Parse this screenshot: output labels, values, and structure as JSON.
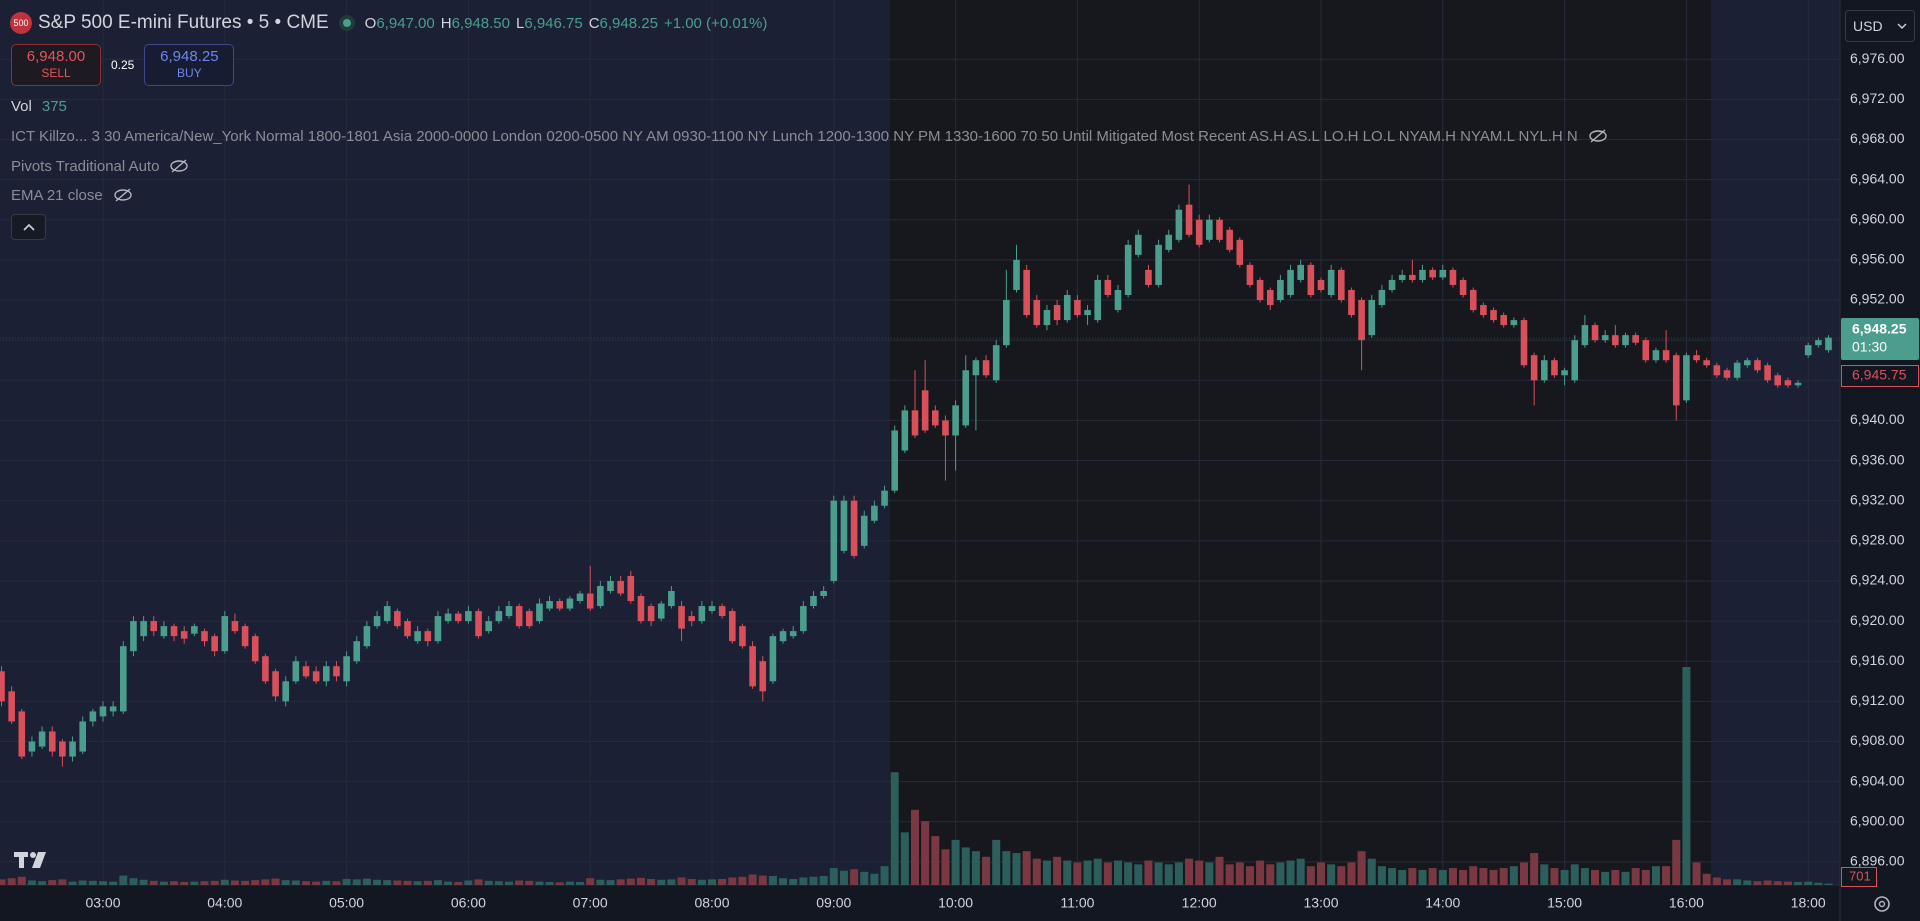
{
  "header": {
    "badge": "500",
    "ohlc": [
      {
        "key": "O",
        "value": "6,947.00"
      },
      {
        "key": "H",
        "value": "6,948.50"
      },
      {
        "key": "L",
        "value": "6,946.75"
      },
      {
        "key": "C",
        "value": "6,948.25"
      }
    ],
    "change": "+1.00 (+0.01%)"
  },
  "trade": {
    "sell_price": "6,948.00",
    "sell": "SELL",
    "spread": "0.25",
    "buy_price": "6,948.25",
    "buy": "BUY"
  },
  "volume_legend": {
    "label": "Vol",
    "value": "375"
  },
  "indicators": [
    "ICT Killzo... 3 30 America/New_York Normal 1800-1801 Asia 2000-0000 London 0200-0500 NY AM 0930-1100 NY Lunch 1200-1300 NY PM 1330-1600 70 50 Until Mitigated Most Recent AS.H AS.L LO.H LO.L NYAM.H NYAM.L NYL.H N",
    "Pivots Traditional Auto",
    "EMA 21 close"
  ],
  "currency": "USD",
  "price_tags": {
    "last": "6,948.25",
    "countdown": "01:30",
    "marker": "6,945.75",
    "volume": "701"
  },
  "chart_data": {
    "type": "candlestick",
    "title": "S&P 500 E-mini Futures • 5 • CME",
    "categories": [
      null,
      null,
      null,
      null,
      null,
      null,
      null,
      null,
      null,
      null,
      "03:00",
      null,
      null,
      null,
      null,
      null,
      null,
      null,
      null,
      null,
      null,
      null,
      "04:00",
      null,
      null,
      null,
      null,
      null,
      null,
      null,
      null,
      null,
      null,
      null,
      "05:00",
      null,
      null,
      null,
      null,
      null,
      null,
      null,
      null,
      null,
      null,
      null,
      "06:00",
      null,
      null,
      null,
      null,
      null,
      null,
      null,
      null,
      null,
      null,
      null,
      "07:00",
      null,
      null,
      null,
      null,
      null,
      null,
      null,
      null,
      null,
      null,
      null,
      "08:00",
      null,
      null,
      null,
      null,
      null,
      null,
      null,
      null,
      null,
      null,
      null,
      "09:00",
      null,
      null,
      null,
      null,
      null,
      null,
      null,
      null,
      null,
      null,
      null,
      "10:00",
      null,
      null,
      null,
      null,
      null,
      null,
      null,
      null,
      null,
      null,
      null,
      "11:00",
      null,
      null,
      null,
      null,
      null,
      null,
      null,
      null,
      null,
      null,
      null,
      "12:00",
      null,
      null,
      null,
      null,
      null,
      null,
      null,
      null,
      null,
      null,
      null,
      "13:00",
      null,
      null,
      null,
      null,
      null,
      null,
      null,
      null,
      null,
      null,
      null,
      "14:00",
      null,
      null,
      null,
      null,
      null,
      null,
      null,
      null,
      null,
      null,
      null,
      "15:00",
      null,
      null,
      null,
      null,
      null,
      null,
      null,
      null,
      null,
      null,
      null,
      "16:00",
      null,
      null,
      null,
      null,
      null,
      null,
      null,
      null,
      null,
      null,
      null,
      "18:00",
      null,
      null
    ],
    "open": [
      6915,
      6913,
      6911,
      6907,
      6907.5,
      6909,
      6908,
      6906.5,
      6907,
      6910,
      6910.5,
      6911,
      6911,
      6917,
      6918.5,
      6920,
      6918.5,
      6919.5,
      6919,
      6918.75,
      6919,
      6918.5,
      6917,
      6920,
      6919.5,
      6918.5,
      6916.5,
      6915,
      6912,
      6914,
      6915.5,
      6915,
      6914,
      6915.5,
      6914,
      6916,
      6917.5,
      6919.5,
      6920,
      6921,
      6920,
      6918,
      6919,
      6918,
      6920,
      6920.75,
      6920,
      6921,
      6919,
      6920,
      6920.5,
      6921.5,
      6921,
      6920,
      6921.25,
      6922,
      6921.25,
      6922,
      6922.75,
      6921.5,
      6923,
      6924,
      6924.5,
      6922.5,
      6921.5,
      6920.25,
      6921.5,
      6921.5,
      6920.5,
      6920,
      6921,
      6921.5,
      6921,
      6919.5,
      6917.5,
      6916,
      6914,
      6918,
      6918.5,
      6919,
      6921.5,
      6922.5,
      6924,
      6927,
      6932,
      6927.5,
      6930,
      6931.5,
      6933,
      6937,
      6941,
      6943,
      6941,
      6940,
      6938.5,
      6939.5,
      6944.5,
      6946,
      6944,
      6947.5,
      6953,
      6955,
      6952,
      6949.5,
      6951.5,
      6950,
      6952,
      6950.5,
      6950,
      6954,
      6951,
      6952.5,
      6956.5,
      6955,
      6953.5,
      6957,
      6958,
      6961.5,
      6960,
      6958,
      6960,
      6959,
      6958,
      6955.5,
      6954,
      6953,
      6952,
      6952.5,
      6954,
      6955.5,
      6954,
      6952.5,
      6955,
      6953,
      6952,
      6948.5,
      6951.5,
      6953,
      6954,
      6954.5,
      6954,
      6955,
      6954.25,
      6955,
      6954,
      6953,
      6951.5,
      6951,
      6950.5,
      6949.5,
      6950,
      6946.5,
      6944,
      6946,
      6944.5,
      6944,
      6947.5,
      6949.5,
      6948,
      6948.5,
      6947.5,
      6948.5,
      6948,
      6946,
      6947,
      6946.5,
      6942,
      6946.5,
      6946,
      6945.5,
      6945,
      6944.25,
      6945.5,
      6946,
      6945.5,
      6944.5,
      6944,
      6943.5,
      6946.5,
      6947.5,
      6947
    ],
    "high": [
      6915.5,
      6913.5,
      6911.25,
      6908.5,
      6909.5,
      6909.5,
      6908.25,
      6908.5,
      6910.5,
      6911.25,
      6912,
      6912,
      6918,
      6920.5,
      6920.5,
      6920.5,
      6920,
      6919.75,
      6919.5,
      6919.75,
      6919.25,
      6918.75,
      6921,
      6920.75,
      6919.75,
      6918.75,
      6916.75,
      6915.25,
      6914.5,
      6916.5,
      6916,
      6915.5,
      6916,
      6916,
      6917,
      6918.5,
      6920,
      6921,
      6922,
      6921.25,
      6920.25,
      6919.5,
      6919.25,
      6921,
      6921.25,
      6921,
      6921.5,
      6921.25,
      6920.5,
      6921.5,
      6922,
      6921.75,
      6921.25,
      6922.25,
      6922.5,
      6922.25,
      6922.5,
      6923,
      6925.5,
      6924,
      6924.5,
      6924.5,
      6925,
      6922.75,
      6921.75,
      6922,
      6923.5,
      6922,
      6921,
      6922,
      6922,
      6921.75,
      6921.25,
      6919.75,
      6918,
      6916.5,
      6918.75,
      6919.25,
      6919.5,
      6922,
      6923,
      6923.5,
      6932.5,
      6932.5,
      6932.5,
      6931,
      6932,
      6933.5,
      6939.5,
      6941.5,
      6945,
      6946,
      6941.5,
      6940.5,
      6942,
      6946.5,
      6946.25,
      6946.5,
      6948,
      6955,
      6957.5,
      6955.5,
      6952.5,
      6951.5,
      6952,
      6953,
      6952.5,
      6951.5,
      6954.5,
      6954.5,
      6953.5,
      6958,
      6959,
      6955.5,
      6958,
      6959,
      6961.5,
      6963.5,
      6960.5,
      6960.5,
      6960.25,
      6959.25,
      6958.25,
      6955.75,
      6954.25,
      6953.25,
      6954.5,
      6955.5,
      6956,
      6955.75,
      6954.25,
      6955.5,
      6955.25,
      6953.25,
      6952.25,
      6952.5,
      6953.5,
      6954.5,
      6955,
      6956,
      6955.5,
      6955.25,
      6955.5,
      6955.25,
      6954.25,
      6953.25,
      6951.75,
      6951.25,
      6950.75,
      6950.25,
      6950.25,
      6946.75,
      6946.5,
      6946.25,
      6945.25,
      6948.5,
      6950.5,
      6949.75,
      6949,
      6949.5,
      6948.75,
      6948.75,
      6948.25,
      6947.25,
      6949,
      6946.75,
      6946.75,
      6947,
      6946.25,
      6945.75,
      6945.25,
      6946,
      6946.25,
      6946.25,
      6945.75,
      6944.75,
      6944.25,
      6944,
      6947.75,
      6948.25,
      6948.5
    ],
    "low": [
      6911.5,
      6909.75,
      6906.25,
      6906.5,
      6907.25,
      6906.5,
      6905.5,
      6906,
      6906.75,
      6909.5,
      6910,
      6910.5,
      6910.75,
      6916.5,
      6918,
      6918.5,
      6918.25,
      6918,
      6917.75,
      6918.5,
      6917.5,
      6916.5,
      6916.75,
      6918.75,
      6917.25,
      6915.75,
      6913.75,
      6912,
      6911.5,
      6913.75,
      6914.25,
      6913.75,
      6913.5,
      6914,
      6913.5,
      6915.75,
      6917.25,
      6919.25,
      6919.75,
      6919.25,
      6918.25,
      6917.75,
      6917.5,
      6917.75,
      6919.75,
      6919.75,
      6919.75,
      6918.25,
      6918.75,
      6919.75,
      6920.25,
      6919.25,
      6919.25,
      6919.75,
      6921,
      6921,
      6921,
      6921.75,
      6921,
      6921.25,
      6922.75,
      6922.5,
      6921.75,
      6919.75,
      6919.5,
      6920,
      6921.25,
      6918,
      6919.5,
      6919.75,
      6920.75,
      6920.25,
      6917.75,
      6917.25,
      6913.25,
      6912,
      6913.75,
      6917.75,
      6918.25,
      6918.75,
      6921.25,
      6922.25,
      6923.75,
      6926.75,
      6926.25,
      6927.25,
      6929.75,
      6931.25,
      6932.75,
      6936.75,
      6938.25,
      6938.75,
      6939.25,
      6934,
      6935,
      6939.25,
      6939,
      6944.25,
      6943.75,
      6947.25,
      6952.75,
      6950.25,
      6949.25,
      6949,
      6949.5,
      6949.75,
      6950.25,
      6949.5,
      6949.75,
      6952.25,
      6950.75,
      6952.25,
      6956.25,
      6953.25,
      6953.25,
      6956.75,
      6957.75,
      6958.25,
      6957.25,
      6957.75,
      6957.75,
      6956.75,
      6955.25,
      6953.25,
      6951.75,
      6951,
      6951.75,
      6952.25,
      6953.75,
      6952.25,
      6952.75,
      6952.25,
      6951.75,
      6950.25,
      6945,
      6948.25,
      6951.25,
      6952.75,
      6953.75,
      6953.75,
      6953.75,
      6954,
      6954,
      6953.25,
      6952.25,
      6950.75,
      6950.25,
      6949.75,
      6949.25,
      6949.25,
      6945.25,
      6941.5,
      6943.75,
      6944.25,
      6943.5,
      6943.75,
      6947.25,
      6947.75,
      6947.75,
      6947.25,
      6947.25,
      6947.5,
      6945.75,
      6945.75,
      6945.75,
      6940,
      6941.75,
      6945.75,
      6945.25,
      6944.25,
      6944,
      6944,
      6945.25,
      6944.75,
      6943.75,
      6943.25,
      6943.25,
      6943.25,
      6946.25,
      6947.25,
      6946.75
    ],
    "close": [
      6912,
      6910,
      6906.5,
      6908,
      6909,
      6907,
      6906.5,
      6908,
      6910,
      6911,
      6911.5,
      6911.5,
      6917.5,
      6920,
      6920,
      6919,
      6919.5,
      6918.5,
      6918.25,
      6919.5,
      6918,
      6917,
      6920.5,
      6919,
      6917.5,
      6916,
      6914,
      6912.5,
      6914,
      6916,
      6914.5,
      6914,
      6915.5,
      6914.5,
      6916.5,
      6918,
      6919.5,
      6920.5,
      6921.5,
      6919.5,
      6918.5,
      6919,
      6918,
      6920.5,
      6920.75,
      6920,
      6921,
      6918.5,
      6920,
      6921,
      6921.5,
      6919.5,
      6919.5,
      6921.75,
      6922,
      6921.25,
      6922.25,
      6922.75,
      6921.25,
      6923.5,
      6924,
      6922.75,
      6922,
      6920,
      6920,
      6921.75,
      6923,
      6919.25,
      6920,
      6921.5,
      6921.5,
      6920.5,
      6918,
      6917.5,
      6913.5,
      6913,
      6918.5,
      6919,
      6919,
      6921.5,
      6922.5,
      6923,
      6932,
      6932,
      6926.5,
      6930.5,
      6931.5,
      6933,
      6939,
      6941,
      6938.5,
      6939,
      6939.5,
      6938.5,
      6941.5,
      6945,
      6946,
      6944.5,
      6947.5,
      6952,
      6956,
      6950.5,
      6949.5,
      6951,
      6950,
      6952.5,
      6950.5,
      6951,
      6954,
      6952.5,
      6953,
      6957.5,
      6958.5,
      6953.5,
      6957.5,
      6958.5,
      6961,
      6958.5,
      6957.5,
      6960,
      6958,
      6957,
      6955.5,
      6953.5,
      6952,
      6951.5,
      6954,
      6955,
      6955.5,
      6952.5,
      6953,
      6955,
      6952,
      6950.5,
      6948,
      6952,
      6953,
      6954,
      6954.5,
      6954,
      6955,
      6954.25,
      6955,
      6953.5,
      6952.5,
      6951,
      6950.5,
      6950,
      6949.5,
      6950,
      6945.5,
      6944,
      6946,
      6944.5,
      6945,
      6948,
      6949.5,
      6948,
      6948.5,
      6947.5,
      6948.5,
      6947.75,
      6946,
      6947,
      6946,
      6941.5,
      6946.5,
      6946,
      6945.5,
      6944.5,
      6944.25,
      6945.75,
      6946,
      6945,
      6944,
      6943.5,
      6943.5,
      6943.75,
      6947.5,
      6948,
      6948.25
    ],
    "volume": [
      1500,
      1800,
      2200,
      1200,
      1000,
      1300,
      1500,
      900,
      1200,
      1100,
      1000,
      900,
      2500,
      1800,
      1400,
      1100,
      900,
      1000,
      800,
      900,
      1000,
      1100,
      1400,
      1200,
      1100,
      1300,
      1500,
      1700,
      1300,
      1200,
      1000,
      900,
      1100,
      1000,
      1600,
      1500,
      1700,
      1400,
      1300,
      1200,
      1100,
      1000,
      1100,
      1300,
      900,
      800,
      1200,
      1500,
      1100,
      1000,
      900,
      1200,
      1100,
      900,
      800,
      700,
      900,
      800,
      1800,
      1400,
      1300,
      1500,
      1700,
      1900,
      1600,
      1400,
      1500,
      2000,
      1600,
      1400,
      1500,
      1600,
      2000,
      2200,
      2800,
      2500,
      2400,
      1800,
      1600,
      2000,
      2200,
      2400,
      4500,
      3800,
      4200,
      3500,
      3000,
      5000,
      30000,
      14000,
      20000,
      17000,
      13000,
      9500,
      12000,
      10000,
      9000,
      7500,
      12000,
      9000,
      8500,
      9000,
      7000,
      6500,
      7500,
      6500,
      6000,
      6500,
      7000,
      6000,
      6500,
      6000,
      5500,
      6500,
      6000,
      5500,
      6000,
      7000,
      6500,
      6000,
      7500,
      5500,
      6000,
      5000,
      6500,
      5500,
      6000,
      6500,
      7000,
      5000,
      6000,
      5500,
      5000,
      6000,
      9000,
      7000,
      5000,
      4500,
      4000,
      4500,
      4000,
      4500,
      4000,
      4500,
      4000,
      5000,
      4500,
      4000,
      4500,
      5000,
      6000,
      8500,
      5500,
      4500,
      4000,
      5500,
      4500,
      4000,
      3500,
      4000,
      3500,
      4500,
      4000,
      5000,
      5000,
      12000,
      58000,
      6000,
      3000,
      2000,
      1500,
      1500,
      1200,
      1000,
      1200,
      1000,
      900,
      800,
      900,
      600,
      375
    ],
    "ylim": [
      6893.7,
      6981.9
    ],
    "yticks": [
      {
        "value": 6976,
        "label": "6,976.00"
      },
      {
        "value": 6972,
        "label": "6,972.00"
      },
      {
        "value": 6968,
        "label": "6,968.00"
      },
      {
        "value": 6964,
        "label": "6,964.00"
      },
      {
        "value": 6960,
        "label": "6,960.00"
      },
      {
        "value": 6956,
        "label": "6,956.00"
      },
      {
        "value": 6952,
        "label": "6,952.00"
      },
      {
        "value": 6948,
        "label": "6,948.00"
      },
      {
        "value": 6944,
        "label": "6,944.00"
      },
      {
        "value": 6940,
        "label": "6,940.00"
      },
      {
        "value": 6936,
        "label": "6,936.00"
      },
      {
        "value": 6932,
        "label": "6,932.00"
      },
      {
        "value": 6928,
        "label": "6,928.00"
      },
      {
        "value": 6924,
        "label": "6,924.00"
      },
      {
        "value": 6920,
        "label": "6,920.00"
      },
      {
        "value": 6916,
        "label": "6,916.00"
      },
      {
        "value": 6912,
        "label": "6,912.00"
      },
      {
        "value": 6908,
        "label": "6,908.00"
      },
      {
        "value": 6904,
        "label": "6,904.00"
      },
      {
        "value": 6900,
        "label": "6,900.00"
      },
      {
        "value": 6896,
        "label": "6,896.00"
      }
    ],
    "grid": true,
    "up_color": "#4b9e8e",
    "down_color": "#d9505a",
    "volume_up_color": "#2c5e5b",
    "volume_down_color": "#7a3942"
  }
}
